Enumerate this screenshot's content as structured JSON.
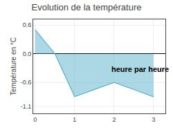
{
  "chart_data": {
    "type": "area",
    "title": "Evolution de la température",
    "ylabel": "Température en °C",
    "x": [
      0,
      0.5,
      1.0,
      1.5,
      2.0,
      2.5,
      3.0
    ],
    "series": [
      {
        "values": [
          0.5,
          0.0,
          -0.9,
          -0.75,
          -0.6,
          -0.75,
          -0.9
        ],
        "color": "#5aafca"
      }
    ],
    "xlim": [
      -0.05,
      3.3
    ],
    "ylim": [
      -1.25,
      0.72
    ],
    "xticks": [
      0,
      1,
      2,
      3
    ],
    "yticks": [
      -1.1,
      -0.6,
      {
        "value": 0,
        "label": "0.0"
      },
      0.6
    ],
    "grid": true,
    "annotations": [
      {
        "text": "heure par heure",
        "x": 1.9,
        "y": -0.32
      }
    ]
  }
}
